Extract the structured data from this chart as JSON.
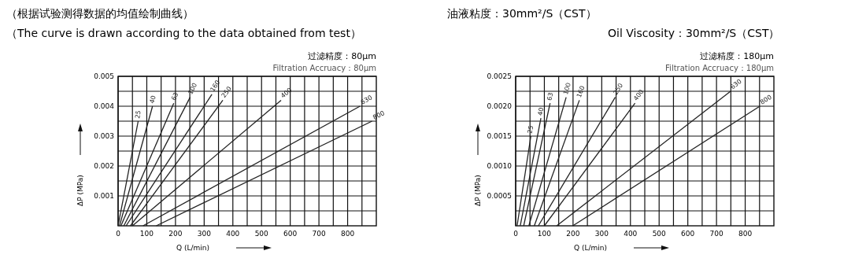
{
  "chart_data": [
    {
      "type": "line",
      "title": "过滤精度：80μm",
      "subtitle": "Filtration Accruacy：80μm",
      "xlabel": "Q (L/min)",
      "ylabel": "ΔP (MPa)",
      "annotations": [
        "（根据试验测得数据的均值绘制曲线）",
        "油液粘度：30mm²/S（CST）",
        "（The curve is drawn according to the data obtained from test）",
        "Oil Viscosity：30mm²/S（CST）"
      ],
      "xlim": [
        0,
        900
      ],
      "ylim": [
        0,
        0.005
      ],
      "xticks": [
        0,
        {
          "value": 50,
          "label": null
        },
        100,
        {
          "value": 150,
          "label": null
        },
        200,
        {
          "value": 250,
          "label": null
        },
        300,
        {
          "value": 350,
          "label": null
        },
        400,
        {
          "value": 450,
          "label": null
        },
        500,
        {
          "value": 550,
          "label": null
        },
        600,
        {
          "value": 650,
          "label": null
        },
        700,
        {
          "value": 750,
          "label": null
        },
        800,
        {
          "value": 850,
          "label": null
        }
      ],
      "yticks": [
        {
          "value": 0.0005,
          "label": null
        },
        0.001,
        {
          "value": 0.0015,
          "label": null
        },
        0.002,
        {
          "value": 0.0025,
          "label": null
        },
        0.003,
        {
          "value": 0.0035,
          "label": null
        },
        0.004,
        {
          "value": 0.0045,
          "label": null
        },
        0.005
      ],
      "grid": true,
      "marker": "none",
      "line_style": "solid",
      "series": [
        {
          "name": "25",
          "color": "#222222",
          "x": [
            0,
            70
          ],
          "values": [
            0,
            0.0035
          ]
        },
        {
          "name": "40",
          "color": "#222222",
          "x": [
            5,
            120
          ],
          "values": [
            0,
            0.004
          ]
        },
        {
          "name": "63",
          "color": "#222222",
          "x": [
            10,
            194
          ],
          "values": [
            0,
            0.0041
          ]
        },
        {
          "name": "100",
          "color": "#222222",
          "x": [
            20,
            251
          ],
          "values": [
            0,
            0.0043
          ]
        },
        {
          "name": "160",
          "color": "#222222",
          "x": [
            28,
            327
          ],
          "values": [
            0,
            0.0044
          ]
        },
        {
          "name": "250",
          "color": "#222222",
          "x": [
            43,
            365
          ],
          "values": [
            0,
            0.0042
          ]
        },
        {
          "name": "400",
          "color": "#222222",
          "x": [
            50,
            568
          ],
          "values": [
            0,
            0.0042
          ]
        },
        {
          "name": "630",
          "color": "#222222",
          "x": [
            87,
            843
          ],
          "values": [
            0,
            0.004
          ]
        },
        {
          "name": "800",
          "color": "#222222",
          "x": [
            133,
            885
          ],
          "values": [
            0,
            0.0035
          ]
        }
      ]
    },
    {
      "type": "line",
      "title": "过滤精度：180μm",
      "subtitle": "Filtration Accruacy：180μm",
      "xlabel": "Q (L/min)",
      "ylabel": "ΔP (MPa)",
      "xlim": [
        0,
        900
      ],
      "ylim": [
        0,
        0.0025
      ],
      "xticks": [
        0,
        {
          "value": 50,
          "label": null
        },
        100,
        {
          "value": 150,
          "label": null
        },
        200,
        {
          "value": 250,
          "label": null
        },
        300,
        {
          "value": 350,
          "label": null
        },
        400,
        {
          "value": 450,
          "label": null
        },
        500,
        {
          "value": 550,
          "label": null
        },
        600,
        {
          "value": 650,
          "label": null
        },
        700,
        {
          "value": 750,
          "label": null
        },
        800,
        {
          "value": 850,
          "label": null
        }
      ],
      "yticks": [
        {
          "value": 0.00025,
          "label": null
        },
        {
          "value": 0.0005,
          "label": "0.0005"
        },
        {
          "value": 0.00075,
          "label": null
        },
        {
          "value": 0.001,
          "label": "0.0010"
        },
        {
          "value": 0.00125,
          "label": null
        },
        {
          "value": 0.0015,
          "label": "0.0015"
        },
        {
          "value": 0.00175,
          "label": null
        },
        {
          "value": 0.002,
          "label": "0.0020"
        },
        {
          "value": 0.00225,
          "label": null
        },
        {
          "value": 0.0025,
          "label": "0.0025"
        }
      ],
      "grid": true,
      "marker": "none",
      "line_style": "solid",
      "series": [
        {
          "name": "25",
          "color": "#222222",
          "x": [
            5,
            53
          ],
          "values": [
            0,
            0.0015
          ]
        },
        {
          "name": "40",
          "color": "#222222",
          "x": [
            16,
            88
          ],
          "values": [
            0,
            0.0018
          ]
        },
        {
          "name": "63",
          "color": "#222222",
          "x": [
            28,
            120
          ],
          "values": [
            0,
            0.00205
          ]
        },
        {
          "name": "100",
          "color": "#222222",
          "x": [
            46,
            176
          ],
          "values": [
            0,
            0.00215
          ]
        },
        {
          "name": "160",
          "color": "#222222",
          "x": [
            65,
            222
          ],
          "values": [
            0,
            0.0021
          ]
        },
        {
          "name": "250",
          "color": "#222222",
          "x": [
            79,
            347
          ],
          "values": [
            0,
            0.00215
          ]
        },
        {
          "name": "400",
          "color": "#222222",
          "x": [
            100,
            416
          ],
          "values": [
            0,
            0.00205
          ]
        },
        {
          "name": "630",
          "color": "#222222",
          "x": [
            143,
            749
          ],
          "values": [
            0,
            0.00225
          ]
        },
        {
          "name": "800",
          "color": "#222222",
          "x": [
            199,
            851
          ],
          "values": [
            0,
            0.002
          ]
        }
      ]
    }
  ]
}
